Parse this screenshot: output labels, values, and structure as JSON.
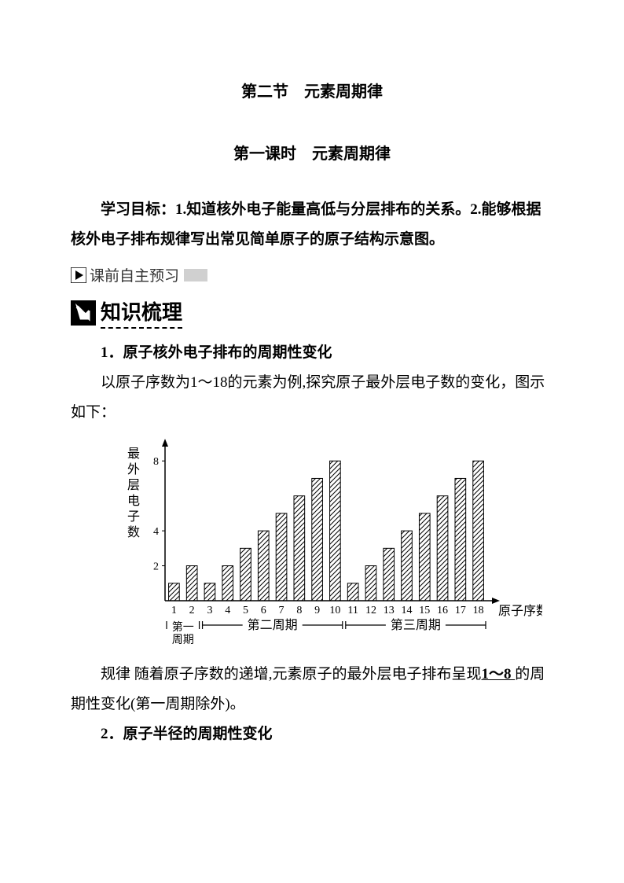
{
  "title": {
    "main": "第二节　元素周期律",
    "sub": "第一课时　元素周期律"
  },
  "objective": "学习目标：1.知道核外电子能量高低与分层排布的关系。2.能够根据核外电子排布规律写出常见简单原子的原子结构示意图。",
  "preview_label": "课前自主预习",
  "section_header": "知识梳理",
  "para1": "1．原子核外电子排布的周期性变化",
  "para2": "以原子序数为1～18的元素为例,探究原子最外层电子数的变化，图示如下：",
  "para3_pre": "规律  随着原子序数的递增,元素原子的最外层电子排布呈现",
  "para3_underline": "1～8 ",
  "para3_post": "的周期性变化(第一周期除外)。",
  "para4": "2．原子半径的周期性变化",
  "chart": {
    "type": "bar",
    "x_values": [
      1,
      2,
      3,
      4,
      5,
      6,
      7,
      8,
      9,
      10,
      11,
      12,
      13,
      14,
      15,
      16,
      17,
      18
    ],
    "y_values": [
      1,
      2,
      1,
      2,
      3,
      4,
      5,
      6,
      7,
      8,
      1,
      2,
      3,
      4,
      5,
      6,
      7,
      8
    ],
    "y_label": "最外层电子数",
    "x_label": "原子序数",
    "y_ticks": [
      2,
      4,
      8
    ],
    "y_max": 9,
    "periods": [
      {
        "label": "第一周期",
        "start": 1,
        "end": 2
      },
      {
        "label": "第二周期",
        "start": 3,
        "end": 10
      },
      {
        "label": "第三周期",
        "start": 11,
        "end": 18
      }
    ],
    "bar_fill": "hatch",
    "bar_stroke": "#000000",
    "axis_color": "#000000",
    "background": "#ffffff",
    "font_size_axis": 14,
    "font_size_label": 16,
    "bar_width": 0.6
  }
}
